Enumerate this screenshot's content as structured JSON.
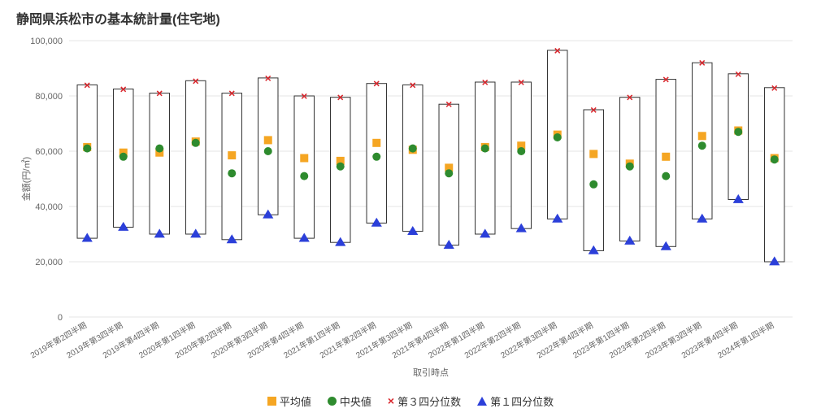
{
  "chart": {
    "type": "boxplot-like",
    "title": "静岡県浜松市の基本統計量(住宅地)",
    "title_fontsize": 16,
    "title_color": "#333333",
    "x_axis_label": "取引時点",
    "y_axis_label": "金額(円/㎡)",
    "label_fontsize": 11,
    "label_color": "#666666",
    "ylim": [
      0,
      100000
    ],
    "ytick_step": 20000,
    "ytick_format": "comma",
    "background_color": "#ffffff",
    "grid_color": "#e6e6e6",
    "box_border_color": "#333333",
    "box_border_width": 1,
    "box_fill": "#ffffff",
    "box_width_ratio": 0.55,
    "marker": {
      "mean": {
        "shape": "square",
        "size": 10,
        "color": "#f5a623"
      },
      "median": {
        "shape": "circle",
        "size": 10,
        "color": "#2e8b2e"
      },
      "q3": {
        "shape": "x",
        "size": 12,
        "color": "#d9272d"
      },
      "q1": {
        "shape": "triangle",
        "size": 11,
        "color": "#2b3fd9"
      }
    },
    "legend_items": [
      {
        "key": "mean",
        "label": "平均値"
      },
      {
        "key": "median",
        "label": "中央値"
      },
      {
        "key": "q3",
        "label": "第３四分位数"
      },
      {
        "key": "q1",
        "label": "第１四分位数"
      }
    ],
    "categories": [
      "2019年第2四半期",
      "2019年第3四半期",
      "2019年第4四半期",
      "2020年第1四半期",
      "2020年第2四半期",
      "2020年第3四半期",
      "2020年第4四半期",
      "2021年第1四半期",
      "2021年第2四半期",
      "2021年第3四半期",
      "2021年第4四半期",
      "2022年第1四半期",
      "2022年第2四半期",
      "2022年第3四半期",
      "2022年第4四半期",
      "2023年第1四半期",
      "2023年第2四半期",
      "2023年第3四半期",
      "2023年第4四半期",
      "2024年第1四半期"
    ],
    "series": [
      {
        "mean": 61500,
        "median": 61000,
        "q1": 28500,
        "q3": 84000
      },
      {
        "mean": 59500,
        "median": 58000,
        "q1": 32500,
        "q3": 82500
      },
      {
        "mean": 59500,
        "median": 61000,
        "q1": 30000,
        "q3": 81000
      },
      {
        "mean": 63500,
        "median": 63000,
        "q1": 30000,
        "q3": 85500
      },
      {
        "mean": 58500,
        "median": 52000,
        "q1": 28000,
        "q3": 81000
      },
      {
        "mean": 64000,
        "median": 60000,
        "q1": 37000,
        "q3": 86500
      },
      {
        "mean": 57500,
        "median": 51000,
        "q1": 28500,
        "q3": 80000
      },
      {
        "mean": 56500,
        "median": 54500,
        "q1": 27000,
        "q3": 79500
      },
      {
        "mean": 63000,
        "median": 58000,
        "q1": 34000,
        "q3": 84500
      },
      {
        "mean": 60500,
        "median": 61000,
        "q1": 31000,
        "q3": 84000
      },
      {
        "mean": 54000,
        "median": 52000,
        "q1": 26000,
        "q3": 77000
      },
      {
        "mean": 61500,
        "median": 61000,
        "q1": 30000,
        "q3": 85000
      },
      {
        "mean": 62000,
        "median": 60000,
        "q1": 32000,
        "q3": 85000
      },
      {
        "mean": 66000,
        "median": 65000,
        "q1": 35500,
        "q3": 96500
      },
      {
        "mean": 59000,
        "median": 48000,
        "q1": 24000,
        "q3": 75000
      },
      {
        "mean": 55500,
        "median": 54500,
        "q1": 27500,
        "q3": 79500
      },
      {
        "mean": 58000,
        "median": 51000,
        "q1": 25500,
        "q3": 86000
      },
      {
        "mean": 65500,
        "median": 62000,
        "q1": 35500,
        "q3": 92000
      },
      {
        "mean": 67500,
        "median": 67000,
        "q1": 42500,
        "q3": 88000
      },
      {
        "mean": 57500,
        "median": 57000,
        "q1": 20000,
        "q3": 83000
      }
    ]
  }
}
